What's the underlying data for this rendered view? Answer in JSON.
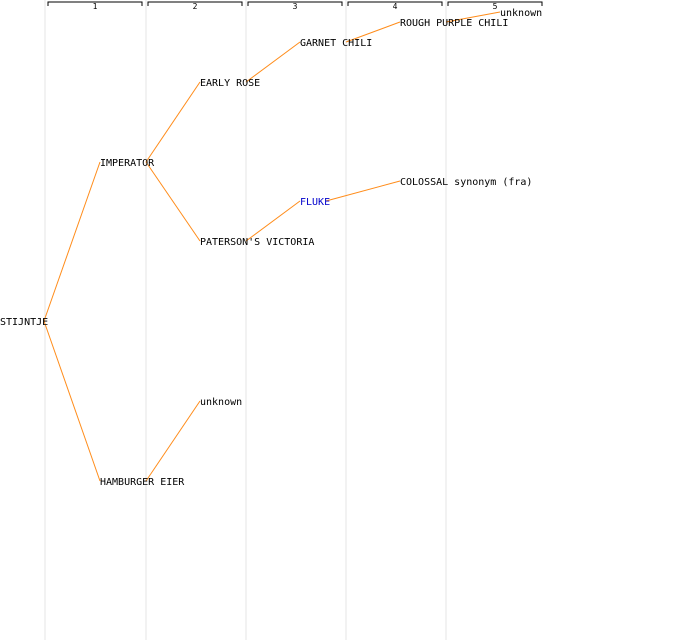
{
  "generations": [
    "1",
    "2",
    "3",
    "4",
    "5"
  ],
  "colors": {
    "edge": "#ff8c1a",
    "column_line": "#e4e4e4",
    "bracket": "#000000",
    "link_text": "#0000cc",
    "text": "#000000"
  },
  "tree": {
    "root": {
      "label": "STIJNTJE",
      "parents": [
        {
          "label": "IMPERATOR",
          "parents": [
            {
              "label": "EARLY ROSE",
              "parents": [
                {
                  "label": "GARNET CHILI",
                  "parents": [
                    {
                      "label": "ROUGH PURPLE CHILI",
                      "parents": [
                        {
                          "label": "unknown"
                        }
                      ]
                    }
                  ]
                }
              ]
            },
            {
              "label": "PATERSON'S VICTORIA",
              "parents": [
                {
                  "label": "FLUKE",
                  "link": true,
                  "parents": [
                    {
                      "label": "COLOSSAL synonym (fra)"
                    }
                  ]
                }
              ]
            }
          ]
        },
        {
          "label": "HAMBURGER EIER",
          "parents": [
            {
              "label": "unknown"
            }
          ]
        }
      ]
    }
  }
}
